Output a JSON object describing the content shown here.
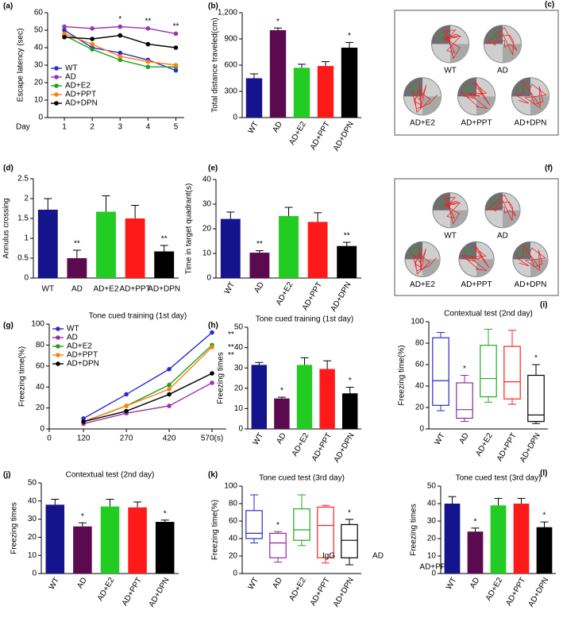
{
  "chart_data": [
    {
      "panel": "(a)",
      "type": "line",
      "ylabel": "Escape latency (sec)",
      "xlabel": "Day",
      "x": [
        1,
        2,
        3,
        4,
        5
      ],
      "xlim": [
        0.4,
        5.3
      ],
      "xticks": [
        1,
        2,
        3,
        4,
        5
      ],
      "ylim": [
        0,
        60
      ],
      "yticks": [
        0,
        10,
        20,
        30,
        40,
        50,
        60
      ],
      "legend": "lower left",
      "series": [
        {
          "name": "WT",
          "color": "#2a2ad0",
          "values": [
            50,
            40,
            37,
            33,
            27
          ]
        },
        {
          "name": "AD",
          "color": "#9b30b0",
          "values": [
            52,
            51,
            52,
            51,
            48
          ]
        },
        {
          "name": "AD+E2",
          "color": "#1fa01f",
          "values": [
            47,
            39,
            33,
            29,
            29
          ]
        },
        {
          "name": "AD+PPT",
          "color": "#ff7f0e",
          "values": [
            48,
            42,
            35,
            32,
            30
          ]
        },
        {
          "name": "AD+DPN",
          "color": "#000000",
          "values": [
            46,
            45,
            47,
            42,
            40
          ]
        }
      ],
      "stars": [
        null,
        null,
        "*",
        "**",
        "**"
      ]
    },
    {
      "panel": "(b)",
      "type": "bar",
      "ylabel": "Total distance traveled(cm)",
      "categories": [
        "WT",
        "AD",
        "AD+E2",
        "AD+PPT",
        "AD+DPN"
      ],
      "values": [
        450,
        1000,
        570,
        590,
        800
      ],
      "errors": [
        50,
        25,
        40,
        50,
        60
      ],
      "ylim": [
        0,
        1200
      ],
      "yticks": [
        0,
        300,
        600,
        900,
        {
          "value": 1200,
          "label": "1,200"
        }
      ],
      "colors": [
        "#14148c",
        "#5c0a50",
        "#22cc22",
        "#ff1a1a",
        "#000000"
      ],
      "label_colors": [
        "#2020dd",
        "#9a2ab0",
        "#22cc22",
        "#ff1a1a",
        "#000000"
      ],
      "rotated_labels": true,
      "stars": [
        null,
        "*",
        null,
        null,
        "*"
      ]
    },
    {
      "panel": "(c)",
      "type": "image",
      "labels": [
        "WT",
        "AD",
        "AD+E2",
        "AD+PPT",
        "AD+DPN"
      ]
    },
    {
      "panel": "(d)",
      "type": "bar",
      "ylabel": "Annulus crossing",
      "categories": [
        "WT",
        "AD",
        "AD+E2",
        "AD+PPT",
        "AD+DPN"
      ],
      "values": [
        1.72,
        0.5,
        1.67,
        1.5,
        0.67
      ],
      "errors": [
        0.28,
        0.2,
        0.4,
        0.33,
        0.15
      ],
      "ylim": [
        0,
        2.5
      ],
      "yticks": [
        0,
        0.5,
        1,
        1.5,
        2,
        2.5
      ],
      "colors": [
        "#14148c",
        "#5c0a50",
        "#22cc22",
        "#ff1a1a",
        "#000000"
      ],
      "label_colors": [
        "#2020dd",
        "#9a2ab0",
        "#22cc22",
        "#ff1a1a",
        "#000000"
      ],
      "rotated_labels": false,
      "stars": [
        null,
        "**",
        null,
        null,
        "**"
      ]
    },
    {
      "panel": "(e)",
      "type": "bar",
      "ylabel": "Time in target quadrant(s)",
      "categories": [
        "WT",
        "AD",
        "AD+E2",
        "AD+PPT",
        "AD+DPN"
      ],
      "values": [
        24,
        10.3,
        25.2,
        22.8,
        13
      ],
      "errors": [
        2.8,
        0.8,
        3.5,
        3.7,
        1.5
      ],
      "ylim": [
        0,
        40
      ],
      "yticks": [
        0,
        10,
        20,
        30,
        40
      ],
      "colors": [
        "#14148c",
        "#5c0a50",
        "#22cc22",
        "#ff1a1a",
        "#000000"
      ],
      "label_colors": [
        "#2020dd",
        "#9a2ab0",
        "#22cc22",
        "#ff1a1a",
        "#000000"
      ],
      "rotated_labels": true,
      "stars": [
        null,
        "**",
        null,
        null,
        "**"
      ]
    },
    {
      "panel": "(f)",
      "type": "image",
      "labels": [
        "WT",
        "AD",
        "AD+E2",
        "AD+PPT",
        "AD+DPN"
      ]
    },
    {
      "panel": "(g)",
      "type": "line",
      "title": "Tone cued training (1st day)",
      "ylabel": "Freezing time(%)",
      "x": [
        120,
        270,
        420,
        570
      ],
      "xlim": [
        0,
        620
      ],
      "xticks": [
        0,
        120,
        270,
        420,
        {
          "value": 570,
          "label": "570(s)"
        }
      ],
      "ylim": [
        0,
        100
      ],
      "yticks": [
        0,
        20,
        40,
        60,
        80,
        100
      ],
      "legend": "upper left",
      "series": [
        {
          "name": "WT",
          "color": "#2a2ad0",
          "values": [
            10,
            33,
            57,
            92
          ]
        },
        {
          "name": "AD",
          "color": "#9b30b0",
          "values": [
            5,
            15,
            22,
            44
          ]
        },
        {
          "name": "AD+E2",
          "color": "#1fa01f",
          "values": [
            7,
            22,
            42,
            80
          ]
        },
        {
          "name": "AD+PPT",
          "color": "#ff7f0e",
          "values": [
            7,
            22,
            38,
            78
          ]
        },
        {
          "name": "AD+DPN",
          "color": "#000000",
          "values": [
            7,
            17,
            33,
            53
          ]
        }
      ],
      "series_stars": [
        "**",
        null,
        "**",
        "**",
        null
      ]
    },
    {
      "panel": "(h)",
      "type": "bar",
      "title": "Tone cued training (1st day)",
      "ylabel": "Freezing times",
      "categories": [
        "WT",
        "AD",
        "AD+E2",
        "AD+PPT",
        "AD+DPN"
      ],
      "values": [
        31.5,
        15,
        31.5,
        29.5,
        17.5
      ],
      "errors": [
        1.2,
        0.6,
        3.5,
        4,
        3
      ],
      "ylim": [
        0,
        50
      ],
      "yticks": [
        0,
        10,
        20,
        30,
        40,
        50
      ],
      "colors": [
        "#14148c",
        "#5c0a50",
        "#22cc22",
        "#ff1a1a",
        "#000000"
      ],
      "label_colors": [
        "#2020dd",
        "#9a2ab0",
        "#22cc22",
        "#ff1a1a",
        "#000000"
      ],
      "rotated_labels": true,
      "stars": [
        null,
        "*",
        null,
        null,
        "*"
      ]
    },
    {
      "panel": "(i)",
      "type": "box",
      "title": "Contextual test (2nd day)",
      "ylabel": "Freezing time(%)",
      "categories": [
        "WT",
        "AD",
        "AD+E2",
        "AD+PPT",
        "AD+DPN"
      ],
      "boxes": [
        {
          "min": 17,
          "q1": 22,
          "median": 45,
          "q3": 85,
          "max": 90
        },
        {
          "min": 7,
          "q1": 10,
          "median": 18,
          "q3": 43,
          "max": 50
        },
        {
          "min": 25,
          "q1": 30,
          "median": 47,
          "q3": 78,
          "max": 93
        },
        {
          "min": 23,
          "q1": 28,
          "median": 44,
          "q3": 77,
          "max": 92
        },
        {
          "min": 5,
          "q1": 7,
          "median": 13,
          "q3": 50,
          "max": 60
        }
      ],
      "ylim": [
        0,
        100
      ],
      "yticks": [
        0,
        20,
        40,
        60,
        80,
        100
      ],
      "colors": [
        "#2a2ad0",
        "#8a2aa0",
        "#22aa22",
        "#ff2020",
        "#000000"
      ],
      "label_colors": [
        "#2020dd",
        "#9a2ab0",
        "#22cc22",
        "#ff1a1a",
        "#000000"
      ],
      "rotated_labels": true,
      "stars": [
        null,
        "*",
        null,
        null,
        "*"
      ]
    },
    {
      "panel": "(j)",
      "type": "bar",
      "title": "Contextual test (2nd day)",
      "ylabel": "Freezing times",
      "categories": [
        "WT",
        "AD",
        "AD+E2",
        "AD+PPT",
        "AD+DPN"
      ],
      "values": [
        38,
        26,
        37,
        36.5,
        28.5
      ],
      "errors": [
        3,
        2,
        4,
        3,
        1
      ],
      "ylim": [
        0,
        50
      ],
      "yticks": [
        0,
        10,
        20,
        30,
        40,
        50
      ],
      "colors": [
        "#14148c",
        "#5c0a50",
        "#22cc22",
        "#ff1a1a",
        "#000000"
      ],
      "label_colors": [
        "#2020dd",
        "#9a2ab0",
        "#22cc22",
        "#ff1a1a",
        "#000000"
      ],
      "rotated_labels": true,
      "stars": [
        null,
        "*",
        null,
        null,
        "*"
      ]
    },
    {
      "panel": "(k)",
      "type": "box",
      "title": "Tone cued test (3rd day)",
      "ylabel": "Freezing time(%)",
      "categories": [
        "WT",
        "AD",
        "AD+E2",
        "AD+PPT",
        "AD+DPN"
      ],
      "boxes": [
        {
          "min": 35,
          "q1": 40,
          "median": 46,
          "q3": 72,
          "max": 90
        },
        {
          "min": 13,
          "q1": 18,
          "median": 35,
          "q3": 46,
          "max": 48
        },
        {
          "min": 32,
          "q1": 38,
          "median": 50,
          "q3": 74,
          "max": 90
        },
        {
          "min": 12,
          "q1": 18,
          "median": 55,
          "q3": 76,
          "max": 78
        },
        {
          "min": 10,
          "q1": 18,
          "median": 38,
          "q3": 56,
          "max": 62
        }
      ],
      "ylim": [
        0,
        100
      ],
      "yticks": [
        0,
        20,
        40,
        60,
        80,
        100
      ],
      "colors": [
        "#2a2ad0",
        "#8a2aa0",
        "#22aa22",
        "#ff2020",
        "#000000"
      ],
      "label_colors": [
        "#2020dd",
        "#9a2ab0",
        "#22cc22",
        "#ff1a1a",
        "#000000"
      ],
      "rotated_labels": true,
      "stars": [
        null,
        "*",
        null,
        null,
        "*"
      ],
      "annotations": [
        "IgG",
        "AD",
        "AD+PPT"
      ]
    },
    {
      "panel": "(l)",
      "type": "bar",
      "title": "Tone cued test (3rd day)",
      "ylabel": "Freezing times",
      "categories": [
        "WT",
        "AD",
        "AD+E2",
        "AD+PPT",
        "AD+DPN"
      ],
      "values": [
        40,
        24,
        39,
        40,
        26.5
      ],
      "errors": [
        4,
        2,
        4,
        3,
        3
      ],
      "ylim": [
        0,
        50
      ],
      "yticks": [
        0,
        10,
        20,
        30,
        40,
        50
      ],
      "colors": [
        "#14148c",
        "#5c0a50",
        "#22cc22",
        "#ff1a1a",
        "#000000"
      ],
      "label_colors": [
        "#2020dd",
        "#9a2ab0",
        "#22cc22",
        "#ff1a1a",
        "#000000"
      ],
      "rotated_labels": true,
      "stars": [
        null,
        "*",
        null,
        null,
        "*"
      ]
    }
  ]
}
